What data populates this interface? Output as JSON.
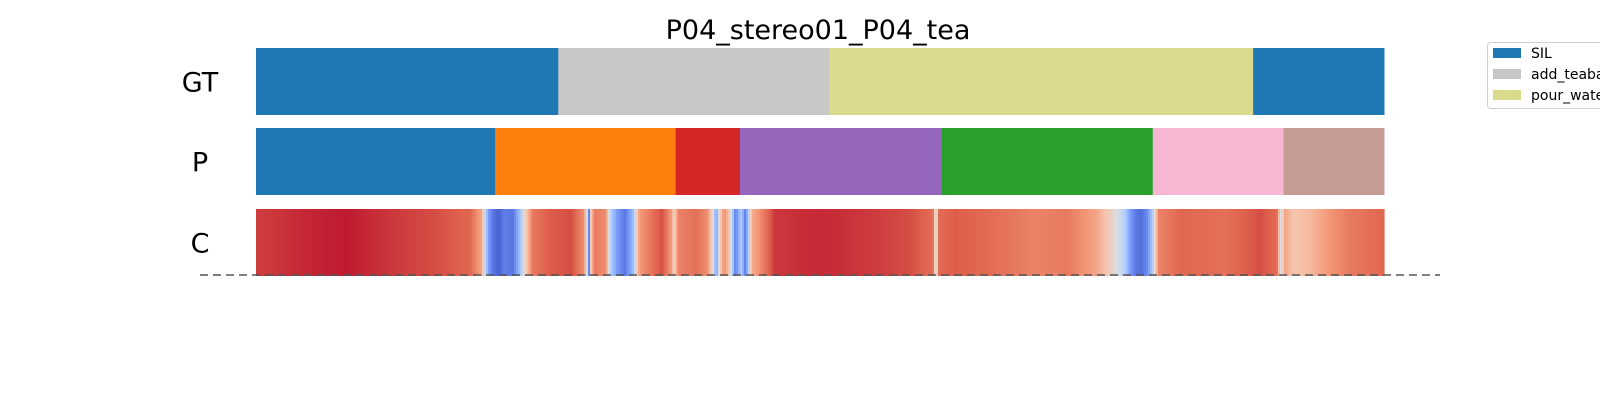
{
  "chart_data": {
    "type": "segmentation-timeline",
    "title": "P04_stereo01_P04_tea",
    "x_range": [
      0,
      1
    ],
    "rows": [
      {
        "label": "GT",
        "segments": [
          {
            "start": 0.0,
            "end": 0.268,
            "class": "SIL",
            "color": "#1f77b4"
          },
          {
            "start": 0.268,
            "end": 0.508,
            "class": "add_teabag",
            "color": "#c7c7c7"
          },
          {
            "start": 0.508,
            "end": 0.884,
            "class": "pour_water",
            "color": "#dbdb8d"
          },
          {
            "start": 0.884,
            "end": 1.0,
            "class": "SIL",
            "color": "#1f77b4"
          }
        ]
      },
      {
        "label": "P",
        "segments": [
          {
            "start": 0.0,
            "end": 0.212,
            "color": "#1f77b4"
          },
          {
            "start": 0.212,
            "end": 0.372,
            "color": "#ff7f0e"
          },
          {
            "start": 0.372,
            "end": 0.429,
            "color": "#d62728"
          },
          {
            "start": 0.429,
            "end": 0.608,
            "color": "#9467bd"
          },
          {
            "start": 0.608,
            "end": 0.795,
            "color": "#2ca02c"
          },
          {
            "start": 0.795,
            "end": 0.911,
            "color": "#f7b6d2"
          },
          {
            "start": 0.911,
            "end": 1.0,
            "color": "#c49c94"
          }
        ]
      },
      {
        "label": "C",
        "colormap": "coolwarm",
        "confidence": [
          [
            0.0,
            0.92
          ],
          [
            0.04,
            0.95
          ],
          [
            0.08,
            0.97
          ],
          [
            0.12,
            0.93
          ],
          [
            0.16,
            0.9
          ],
          [
            0.19,
            0.86
          ],
          [
            0.2,
            0.72
          ],
          [
            0.203,
            0.45
          ],
          [
            0.206,
            0.2
          ],
          [
            0.21,
            0.1
          ],
          [
            0.215,
            0.05
          ],
          [
            0.22,
            0.12
          ],
          [
            0.228,
            0.1
          ],
          [
            0.235,
            0.35
          ],
          [
            0.24,
            0.62
          ],
          [
            0.245,
            0.82
          ],
          [
            0.26,
            0.88
          ],
          [
            0.28,
            0.9
          ],
          [
            0.29,
            0.78
          ],
          [
            0.293,
            0.6
          ],
          [
            0.295,
            0.08
          ],
          [
            0.297,
            0.6
          ],
          [
            0.3,
            0.82
          ],
          [
            0.31,
            0.78
          ],
          [
            0.315,
            0.35
          ],
          [
            0.32,
            0.2
          ],
          [
            0.327,
            0.1
          ],
          [
            0.334,
            0.28
          ],
          [
            0.34,
            0.75
          ],
          [
            0.36,
            0.9
          ],
          [
            0.368,
            0.75
          ],
          [
            0.371,
            0.55
          ],
          [
            0.374,
            0.8
          ],
          [
            0.39,
            0.84
          ],
          [
            0.4,
            0.78
          ],
          [
            0.405,
            0.55
          ],
          [
            0.408,
            0.18
          ],
          [
            0.411,
            0.55
          ],
          [
            0.415,
            0.78
          ],
          [
            0.42,
            0.6
          ],
          [
            0.425,
            0.12
          ],
          [
            0.43,
            0.35
          ],
          [
            0.434,
            0.1
          ],
          [
            0.44,
            0.7
          ],
          [
            0.46,
            0.93
          ],
          [
            0.5,
            0.95
          ],
          [
            0.54,
            0.93
          ],
          [
            0.58,
            0.9
          ],
          [
            0.6,
            0.85
          ],
          [
            0.603,
            0.42
          ],
          [
            0.605,
            0.85
          ],
          [
            0.62,
            0.88
          ],
          [
            0.66,
            0.84
          ],
          [
            0.69,
            0.8
          ],
          [
            0.72,
            0.82
          ],
          [
            0.745,
            0.72
          ],
          [
            0.76,
            0.55
          ],
          [
            0.77,
            0.38
          ],
          [
            0.775,
            0.2
          ],
          [
            0.78,
            0.1
          ],
          [
            0.785,
            0.08
          ],
          [
            0.79,
            0.15
          ],
          [
            0.795,
            0.35
          ],
          [
            0.8,
            0.8
          ],
          [
            0.82,
            0.86
          ],
          [
            0.86,
            0.84
          ],
          [
            0.89,
            0.9
          ],
          [
            0.905,
            0.85
          ],
          [
            0.909,
            0.45
          ],
          [
            0.912,
            0.72
          ],
          [
            0.92,
            0.62
          ],
          [
            0.935,
            0.66
          ],
          [
            0.95,
            0.75
          ],
          [
            0.97,
            0.82
          ],
          [
            1.0,
            0.86
          ]
        ]
      }
    ],
    "baseline_style": "dashed",
    "legend": {
      "placement": "top-right",
      "entries": [
        {
          "label": "SIL",
          "color": "#1f77b4"
        },
        {
          "label": "add_teabag",
          "color": "#c7c7c7"
        },
        {
          "label": "pour_water",
          "color": "#dbdb8d"
        }
      ]
    }
  }
}
